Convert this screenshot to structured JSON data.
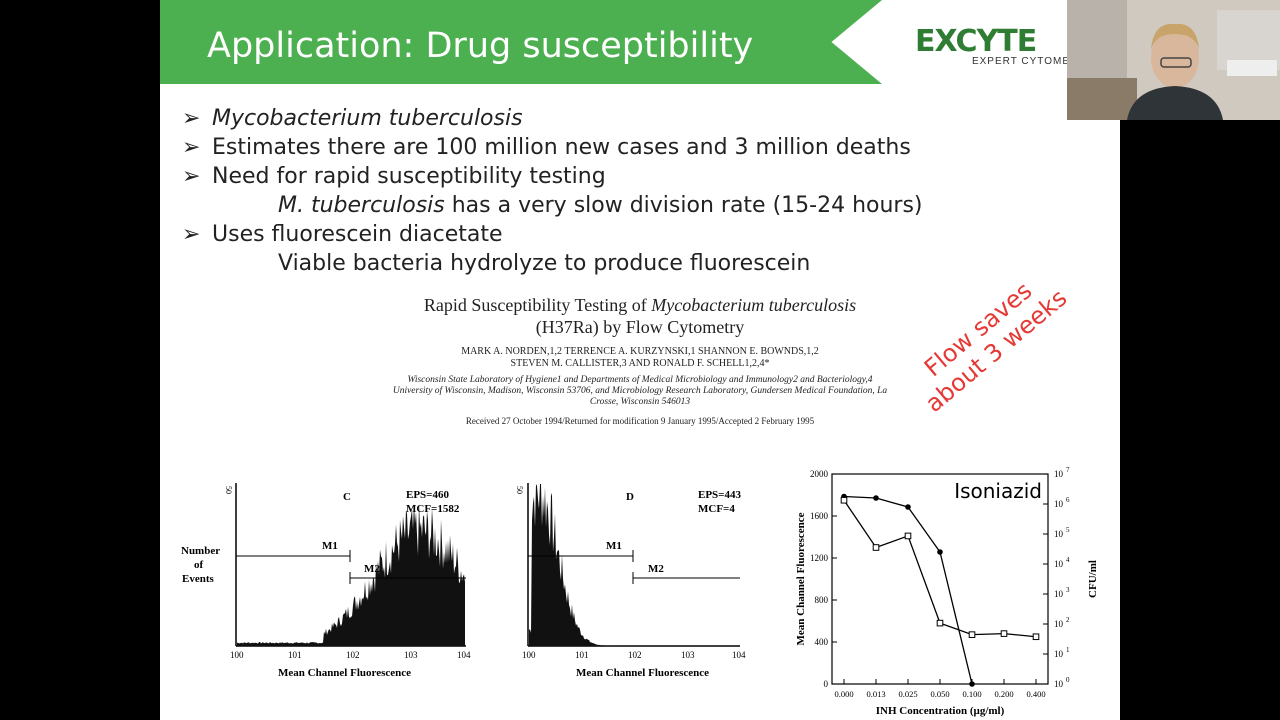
{
  "slide": {
    "title": "Application: Drug susceptibility",
    "logo": {
      "main": "EXCYTE",
      "sub": "EXPERT CYTOME"
    },
    "bullets": [
      {
        "text": "Mycobacterium tuberculosis",
        "italic": true
      },
      {
        "text": "Estimates there are 100 million new cases and 3 million deaths"
      },
      {
        "text": "Need for rapid susceptibility testing"
      }
    ],
    "sub1": {
      "italic_part": "M. tuberculosis",
      "rest": " has a very slow division rate (15-24 hours)"
    },
    "bullet4": "Uses fluorescein diacetate",
    "sub2": "Viable bacteria hydrolyze to produce fluorescein",
    "paper": {
      "title_line1_a": "Rapid Susceptibility Testing of ",
      "title_line1_b": "Mycobacterium tuberculosis",
      "title_line2": "(H37Ra) by Flow Cytometry",
      "authors1": "MARK A. NORDEN,1,2 TERRENCE A. KURZYNSKI,1 SHANNON E. BOWNDS,1,2",
      "authors2": "STEVEN M. CALLISTER,3 AND RONALD F. SCHELL1,2,4*",
      "affiliation": "Wisconsin State Laboratory of Hygiene1 and Departments of Medical Microbiology and Immunology2 and Bacteriology,4 University of Wisconsin, Madison, Wisconsin 53706, and Microbiology Research Laboratory, Gundersen Medical Foundation, La Crosse, Wisconsin 546013",
      "received": "Received 27 October 1994/Returned for modification 9 January 1995/Accepted 2 February 1995"
    },
    "annotation": {
      "line1": "Flow saves",
      "line2": "about 3 weeks"
    }
  },
  "histograms": [
    {
      "panel": "C",
      "stat1": "EPS=460",
      "stat2": "MCF=1582",
      "ymax": "50",
      "ylabel1": "Number",
      "ylabel2": "of",
      "ylabel3": "Events",
      "m1": "M1",
      "m2": "M2",
      "xlabel": "Mean Channel Fluorescence",
      "ticks": [
        "100",
        "101",
        "102",
        "103",
        "104"
      ]
    },
    {
      "panel": "D",
      "stat1": "EPS=443",
      "stat2": "MCF=4",
      "ymax": "50",
      "m1": "M1",
      "m2": "M2",
      "xlabel": "Mean Channel Fluorescence",
      "ticks": [
        "100",
        "101",
        "102",
        "103",
        "104"
      ]
    }
  ],
  "chart_data": {
    "type": "line",
    "title": "Isoniazid",
    "categories": [
      "0.000",
      "0.013",
      "0.025",
      "0.050",
      "0.100",
      "0.200",
      "0.400"
    ],
    "xlabel": "INH Concentration (µg/ml)",
    "ylabel": "Mean Channel Fluorescence",
    "y2label": "CFU/ml",
    "ylim": [
      0,
      2000
    ],
    "yticks": [
      "0",
      "400",
      "800",
      "1200",
      "1600",
      "2000"
    ],
    "y2ticks": [
      "10 0",
      "10 1",
      "10 2",
      "10 3",
      "10 4",
      "10 5",
      "10 6",
      "10 7"
    ],
    "series": [
      {
        "marker": "filled-circle",
        "axis": "right",
        "values": [
          6.25,
          6.2,
          5.9,
          4.4,
          0.0,
          null,
          null
        ]
      },
      {
        "marker": "open-square",
        "axis": "left",
        "values": [
          1750,
          1300,
          1410,
          580,
          470,
          480,
          450
        ]
      }
    ]
  }
}
